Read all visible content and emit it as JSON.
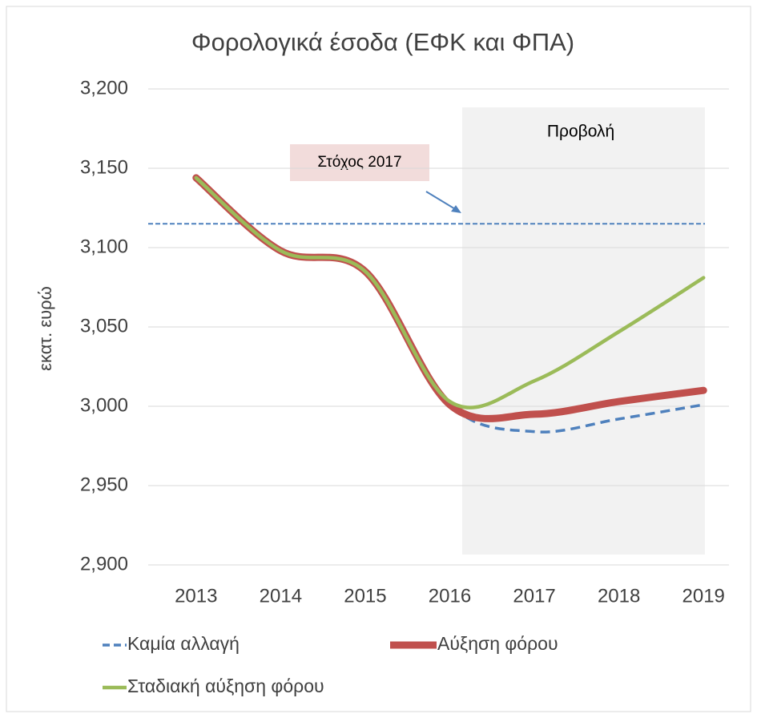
{
  "chart_data": {
    "type": "line",
    "title": "Φορολογικά έσοδα (ΕΦΚ και ΦΠΑ)",
    "y_label": "εκατ. ευρώ",
    "categories": [
      "2013",
      "2014",
      "2015",
      "2016",
      "2017",
      "2018",
      "2019"
    ],
    "series": [
      {
        "name": "Καμία αλλαγή",
        "color": "#4f81bd",
        "dashed": true,
        "values": [
          3144,
          3098,
          3085,
          3001,
          2984,
          2992,
          3001
        ]
      },
      {
        "name": "Αύξηση φόρου",
        "color": "#c0504d",
        "dashed": false,
        "values": [
          3144,
          3098,
          3085,
          3001,
          2995,
          3003,
          3010
        ]
      },
      {
        "name": "Σταδιακή αύξηση φόρου",
        "color": "#9bbb59",
        "dashed": false,
        "values": [
          3144,
          3098,
          3085,
          3003,
          3016,
          3047,
          3081
        ]
      }
    ],
    "ylim": [
      2900,
      3200
    ],
    "yticks": [
      {
        "value": 2900,
        "label": "2,900"
      },
      {
        "value": 2950,
        "label": "2,950"
      },
      {
        "value": 3000,
        "label": "3,000"
      },
      {
        "value": 3050,
        "label": "3,050"
      },
      {
        "value": 3100,
        "label": "3,100"
      },
      {
        "value": 3150,
        "label": "3,150"
      },
      {
        "value": 3200,
        "label": "3,200"
      }
    ],
    "grid": true,
    "target": {
      "label": "Στόχος 2017",
      "value": 3115
    },
    "projection_label": "Προβολή"
  }
}
